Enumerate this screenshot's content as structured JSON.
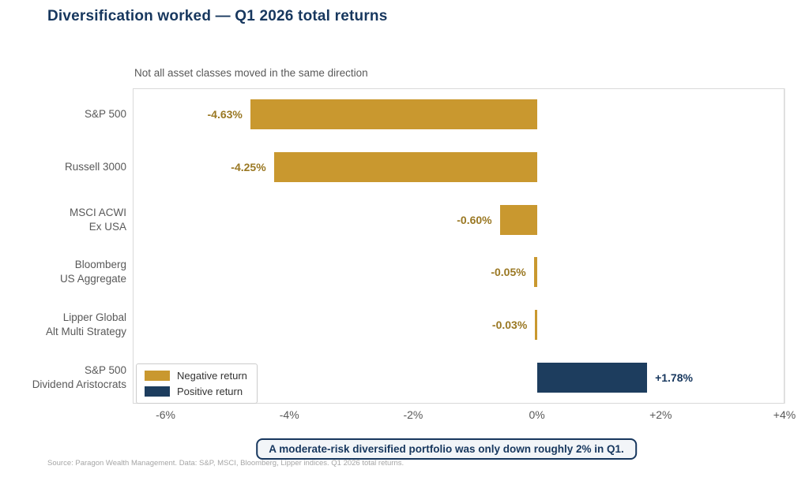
{
  "title": "Diversification worked — Q1 2026 total returns",
  "subtitle": "Not all asset classes moved in the same direction",
  "callout": "A moderate-risk diversified portfolio was only down roughly 2% in Q1.",
  "source": "Source: Paragon Wealth Management. Data: S&P, MSCI, Bloomberg, Lipper indices. Q1 2026 total returns.",
  "colors": {
    "negative_bar": "#C9982F",
    "positive_bar": "#1D3D5E",
    "negative_value_label": "#9A7823",
    "positive_value_label": "#17375E",
    "title_text": "#17375E",
    "axis_text": "#595959"
  },
  "legend": {
    "position": "lower left",
    "entries": [
      {
        "label": "Negative return",
        "color": "#C9982F"
      },
      {
        "label": "Positive return",
        "color": "#1D3D5E"
      }
    ]
  },
  "chart_data": {
    "type": "bar",
    "orientation": "horizontal",
    "title": "Diversification worked — Q1 2026 total returns",
    "subtitle": "Not all asset classes moved in the same direction",
    "categories": [
      "S&P 500",
      "Russell 3000",
      "MSCI ACWI\nEx USA",
      "Bloomberg\nUS Aggregate",
      "Lipper Global\nAlt Multi Strategy",
      "S&P 500\nDividend Aristocrats"
    ],
    "values": [
      -4.63,
      -4.25,
      -0.6,
      -0.05,
      -0.03,
      1.78
    ],
    "value_labels": [
      "-4.63%",
      "-4.25%",
      "-0.60%",
      "-0.05%",
      "-0.03%",
      "+1.78%"
    ],
    "xlim": [
      -6.53,
      4
    ],
    "xticks": [
      -6,
      -4,
      -2,
      0,
      2,
      4
    ],
    "xtick_labels": [
      "-6%",
      "-4%",
      "-2%",
      "0%",
      "+2%",
      "+4%"
    ],
    "grid": "vertical",
    "units": "percent total return"
  }
}
